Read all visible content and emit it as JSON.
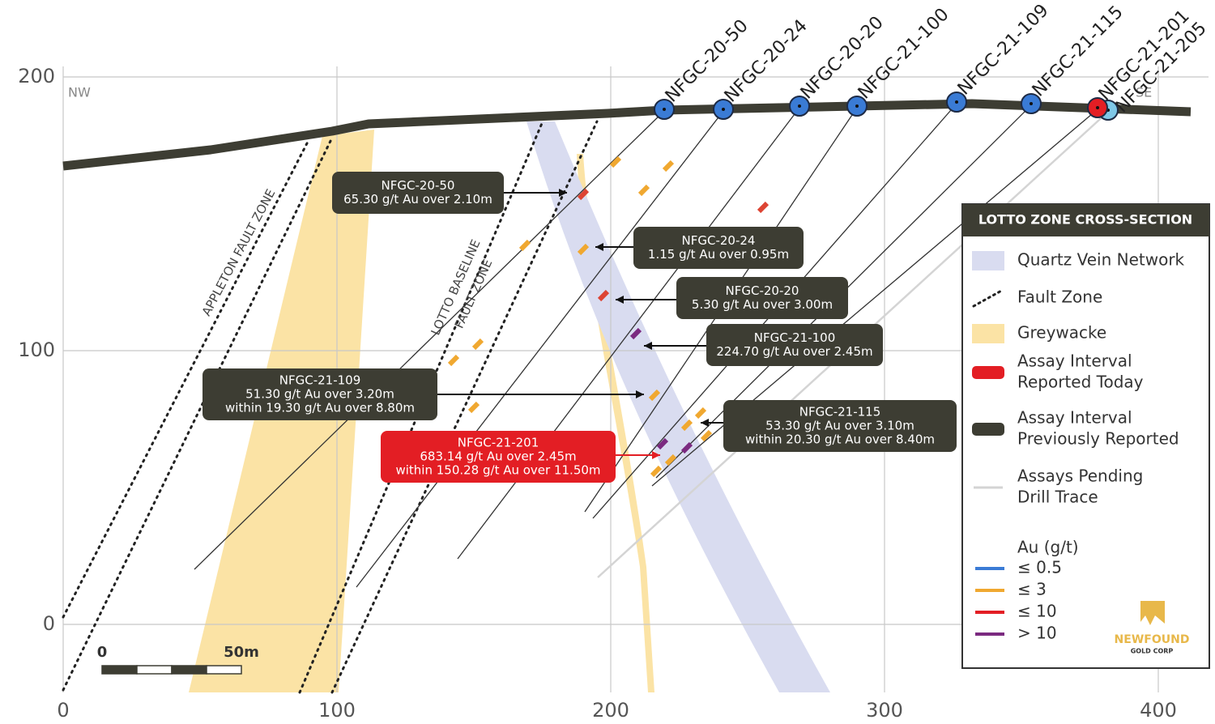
{
  "axes": {
    "x_ticks": [
      "0",
      "100",
      "200",
      "300",
      "400"
    ],
    "y_ticks": [
      "200",
      "100",
      "0"
    ]
  },
  "direction": {
    "left": "NW",
    "right": "SE"
  },
  "drill_holes": [
    "NFGC-20-50",
    "NFGC-20-24",
    "NFGC-20-20",
    "NFGC-21-100",
    "NFGC-21-109",
    "NFGC-21-115",
    "NFGC-21-201",
    "NFGC-21-205"
  ],
  "zones": {
    "appleton": "APPLETON FAULT ZONE",
    "lotto": [
      "LOTTO BASELINE",
      "FAULT ZONE"
    ]
  },
  "callouts": [
    {
      "hole": "NFGC-20-50",
      "lines": [
        "65.30 g/t Au over 2.10m"
      ]
    },
    {
      "hole": "NFGC-20-24",
      "lines": [
        "1.15 g/t Au over 0.95m"
      ]
    },
    {
      "hole": "NFGC-20-20",
      "lines": [
        "5.30 g/t Au over 3.00m"
      ]
    },
    {
      "hole": "NFGC-21-100",
      "lines": [
        "224.70 g/t Au over 2.45m"
      ]
    },
    {
      "hole": "NFGC-21-109",
      "lines": [
        "51.30 g/t Au over 3.20m",
        "within 19.30 g/t Au over 8.80m"
      ]
    },
    {
      "hole": "NFGC-21-201",
      "lines": [
        "683.14 g/t Au over 2.45m",
        "within 150.28 g/t Au over 11.50m"
      ]
    },
    {
      "hole": "NFGC-21-115",
      "lines": [
        "53.30 g/t Au over 3.10m",
        "within 20.30 g/t Au over 8.40m"
      ]
    }
  ],
  "legend": {
    "title": "LOTTO ZONE CROSS-SECTION",
    "items": [
      {
        "lines": [
          "Quartz Vein Network"
        ]
      },
      {
        "lines": [
          "Fault Zone"
        ]
      },
      {
        "lines": [
          "Greywacke"
        ]
      },
      {
        "lines": [
          "Assay Interval",
          "Reported Today"
        ]
      },
      {
        "lines": [
          "Assay Interval",
          "Previously Reported"
        ]
      },
      {
        "lines": [
          "Assays Pending",
          "Drill Trace"
        ]
      }
    ],
    "au_title": "Au (g/t)",
    "au_items": [
      "≤ 0.5",
      "≤ 3",
      "≤ 10",
      "> 10"
    ]
  },
  "scale_bar": {
    "start": "0",
    "end": "50m"
  },
  "logo": {
    "name": "NEWFOUND",
    "sub": "GOLD CORP"
  }
}
